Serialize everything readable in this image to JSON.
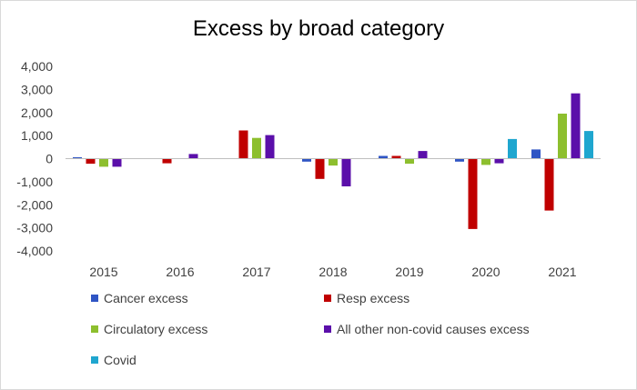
{
  "chart_data": {
    "type": "bar",
    "title": "Excess by broad category",
    "xlabel": "",
    "ylabel": "",
    "categories": [
      "2015",
      "2016",
      "2017",
      "2018",
      "2019",
      "2020",
      "2021"
    ],
    "ylim": [
      -4000,
      4000
    ],
    "yticks": [
      4000,
      3000,
      2000,
      1000,
      0,
      -1000,
      -2000,
      -3000,
      -4000
    ],
    "ytick_labels": [
      "4,000",
      "3,000",
      "2,000",
      "1,000",
      "0",
      "-1,000",
      "-2,000",
      "-3,000",
      "-4,000"
    ],
    "grid": false,
    "legend_position": "bottom",
    "series": [
      {
        "name": "Cancer excess",
        "color": "#2f55c4",
        "values": [
          60,
          0,
          0,
          -130,
          120,
          -130,
          400
        ]
      },
      {
        "name": "Resp excess",
        "color": "#c00000",
        "values": [
          -220,
          -200,
          1220,
          -880,
          120,
          -3050,
          -2250
        ]
      },
      {
        "name": "Circulatory excess",
        "color": "#8dbf2e",
        "values": [
          -350,
          0,
          900,
          -300,
          -220,
          -270,
          1950
        ]
      },
      {
        "name": "All other non-covid causes excess",
        "color": "#5b0faa",
        "values": [
          -350,
          200,
          1020,
          -1200,
          330,
          -200,
          2830
        ]
      },
      {
        "name": "Covid",
        "color": "#1fa6cf",
        "values": [
          0,
          0,
          0,
          0,
          0,
          850,
          1200
        ]
      }
    ]
  }
}
